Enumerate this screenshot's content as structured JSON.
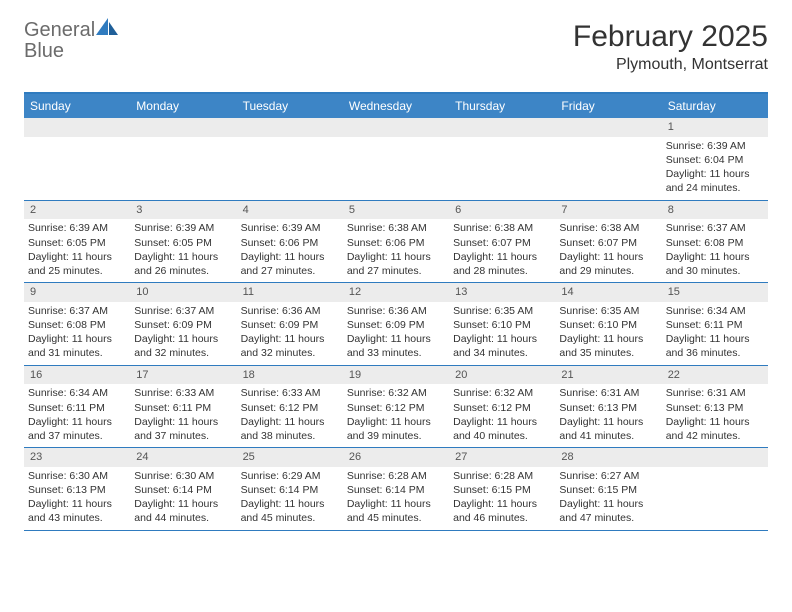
{
  "brand": {
    "part1": "General",
    "part2": "Blue"
  },
  "title": "February 2025",
  "location": "Plymouth, Montserrat",
  "colors": {
    "header_bg": "#3d85c6",
    "accent_border": "#2f7bbf",
    "daynum_bg": "#ececec",
    "text": "#333333",
    "logo_gray": "#6b6b6b",
    "logo_blue": "#2f7bbf",
    "background": "#ffffff"
  },
  "calendar": {
    "type": "table",
    "day_headers": [
      "Sunday",
      "Monday",
      "Tuesday",
      "Wednesday",
      "Thursday",
      "Friday",
      "Saturday"
    ],
    "weeks": [
      [
        null,
        null,
        null,
        null,
        null,
        null,
        {
          "n": "1",
          "sunrise": "6:39 AM",
          "sunset": "6:04 PM",
          "daylight": "11 hours and 24 minutes."
        }
      ],
      [
        {
          "n": "2",
          "sunrise": "6:39 AM",
          "sunset": "6:05 PM",
          "daylight": "11 hours and 25 minutes."
        },
        {
          "n": "3",
          "sunrise": "6:39 AM",
          "sunset": "6:05 PM",
          "daylight": "11 hours and 26 minutes."
        },
        {
          "n": "4",
          "sunrise": "6:39 AM",
          "sunset": "6:06 PM",
          "daylight": "11 hours and 27 minutes."
        },
        {
          "n": "5",
          "sunrise": "6:38 AM",
          "sunset": "6:06 PM",
          "daylight": "11 hours and 27 minutes."
        },
        {
          "n": "6",
          "sunrise": "6:38 AM",
          "sunset": "6:07 PM",
          "daylight": "11 hours and 28 minutes."
        },
        {
          "n": "7",
          "sunrise": "6:38 AM",
          "sunset": "6:07 PM",
          "daylight": "11 hours and 29 minutes."
        },
        {
          "n": "8",
          "sunrise": "6:37 AM",
          "sunset": "6:08 PM",
          "daylight": "11 hours and 30 minutes."
        }
      ],
      [
        {
          "n": "9",
          "sunrise": "6:37 AM",
          "sunset": "6:08 PM",
          "daylight": "11 hours and 31 minutes."
        },
        {
          "n": "10",
          "sunrise": "6:37 AM",
          "sunset": "6:09 PM",
          "daylight": "11 hours and 32 minutes."
        },
        {
          "n": "11",
          "sunrise": "6:36 AM",
          "sunset": "6:09 PM",
          "daylight": "11 hours and 32 minutes."
        },
        {
          "n": "12",
          "sunrise": "6:36 AM",
          "sunset": "6:09 PM",
          "daylight": "11 hours and 33 minutes."
        },
        {
          "n": "13",
          "sunrise": "6:35 AM",
          "sunset": "6:10 PM",
          "daylight": "11 hours and 34 minutes."
        },
        {
          "n": "14",
          "sunrise": "6:35 AM",
          "sunset": "6:10 PM",
          "daylight": "11 hours and 35 minutes."
        },
        {
          "n": "15",
          "sunrise": "6:34 AM",
          "sunset": "6:11 PM",
          "daylight": "11 hours and 36 minutes."
        }
      ],
      [
        {
          "n": "16",
          "sunrise": "6:34 AM",
          "sunset": "6:11 PM",
          "daylight": "11 hours and 37 minutes."
        },
        {
          "n": "17",
          "sunrise": "6:33 AM",
          "sunset": "6:11 PM",
          "daylight": "11 hours and 37 minutes."
        },
        {
          "n": "18",
          "sunrise": "6:33 AM",
          "sunset": "6:12 PM",
          "daylight": "11 hours and 38 minutes."
        },
        {
          "n": "19",
          "sunrise": "6:32 AM",
          "sunset": "6:12 PM",
          "daylight": "11 hours and 39 minutes."
        },
        {
          "n": "20",
          "sunrise": "6:32 AM",
          "sunset": "6:12 PM",
          "daylight": "11 hours and 40 minutes."
        },
        {
          "n": "21",
          "sunrise": "6:31 AM",
          "sunset": "6:13 PM",
          "daylight": "11 hours and 41 minutes."
        },
        {
          "n": "22",
          "sunrise": "6:31 AM",
          "sunset": "6:13 PM",
          "daylight": "11 hours and 42 minutes."
        }
      ],
      [
        {
          "n": "23",
          "sunrise": "6:30 AM",
          "sunset": "6:13 PM",
          "daylight": "11 hours and 43 minutes."
        },
        {
          "n": "24",
          "sunrise": "6:30 AM",
          "sunset": "6:14 PM",
          "daylight": "11 hours and 44 minutes."
        },
        {
          "n": "25",
          "sunrise": "6:29 AM",
          "sunset": "6:14 PM",
          "daylight": "11 hours and 45 minutes."
        },
        {
          "n": "26",
          "sunrise": "6:28 AM",
          "sunset": "6:14 PM",
          "daylight": "11 hours and 45 minutes."
        },
        {
          "n": "27",
          "sunrise": "6:28 AM",
          "sunset": "6:15 PM",
          "daylight": "11 hours and 46 minutes."
        },
        {
          "n": "28",
          "sunrise": "6:27 AM",
          "sunset": "6:15 PM",
          "daylight": "11 hours and 47 minutes."
        },
        null
      ]
    ]
  },
  "labels": {
    "sunrise_prefix": "Sunrise: ",
    "sunset_prefix": "Sunset: ",
    "daylight_prefix": "Daylight: "
  }
}
